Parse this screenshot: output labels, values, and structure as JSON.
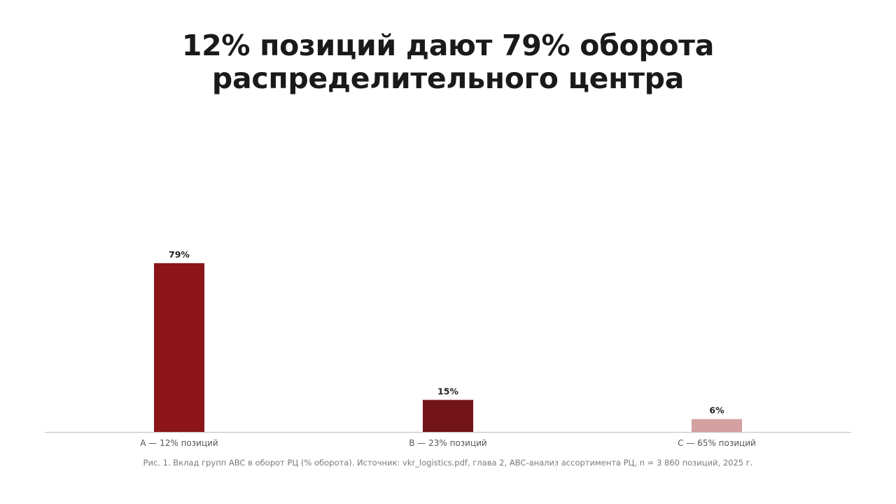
{
  "chart_data": {
    "type": "bar",
    "title_lines": [
      "12% позиций дают 79% оборота",
      "распределительного центра"
    ],
    "categories": [
      "A — 12% позиций",
      "B — 23% позиций",
      "C — 65% позиций"
    ],
    "values": [
      79,
      15,
      6
    ],
    "value_labels": [
      "79%",
      "15%",
      "6%"
    ],
    "colors": [
      "#8b1519",
      "#721418",
      "#d4a0a0"
    ],
    "ylim": [
      0,
      100
    ],
    "grid": false,
    "legend": "none",
    "caption": "Рис. 1. Вклад групп ABC в оборот РЦ (% оборота). Источник: vkr_logistics.pdf, глава 2, ABC-анализ ассортимента РЦ, n = 3 860 позиций, 2025 г."
  }
}
